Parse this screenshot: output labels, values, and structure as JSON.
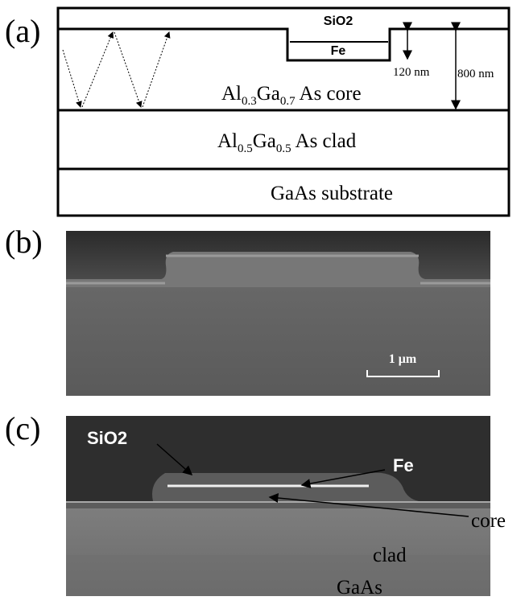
{
  "panel_a": {
    "label": "(a)",
    "oxide": "SiO2",
    "metal": "Fe",
    "metal_thickness": "120 nm",
    "core_thickness": "800 nm",
    "core": {
      "el1": "Al",
      "sub1": "0.3",
      "el2": "Ga",
      "sub2": "0.7",
      "rest": " As core"
    },
    "clad": {
      "el1": "Al",
      "sub1": "0.5",
      "el2": "Ga",
      "sub2": "0.5",
      "rest": " As clad"
    },
    "substrate": "GaAs substrate"
  },
  "panel_b": {
    "label": "(b)",
    "scale_bar": "1 μm"
  },
  "panel_c": {
    "label": "(c)",
    "oxide": "SiO2",
    "metal": "Fe",
    "core": "core",
    "clad": "clad",
    "substrate": "GaAs"
  }
}
